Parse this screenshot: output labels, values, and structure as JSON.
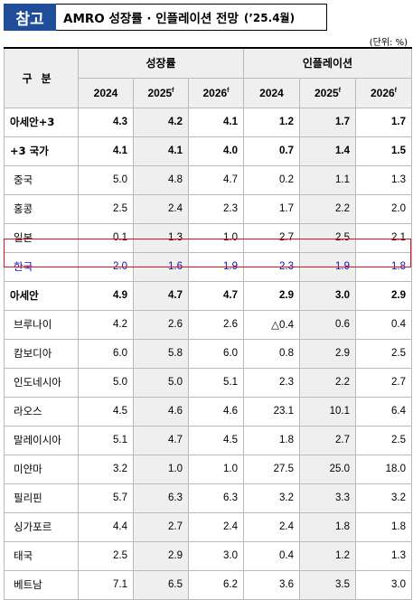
{
  "title": {
    "tag": "참고",
    "text": "AMRO 성장률 · 인플레이션 전망",
    "date": "(’25.4월)"
  },
  "unit": "(단위: %)",
  "header": {
    "corner": "구분",
    "group_growth": "성장률",
    "group_inflation": "인플레이션",
    "years": [
      {
        "year": "2024",
        "mark": ""
      },
      {
        "year": "2025",
        "mark": "f"
      },
      {
        "year": "2026",
        "mark": "f"
      },
      {
        "year": "2024",
        "mark": ""
      },
      {
        "year": "2025",
        "mark": "f"
      },
      {
        "year": "2026",
        "mark": "f"
      }
    ]
  },
  "rows": [
    {
      "name": "아세안+3",
      "values": [
        "4.3",
        "4.2",
        "4.1",
        "1.2",
        "1.7",
        "1.7"
      ]
    },
    {
      "name": "+3 국가",
      "values": [
        "4.1",
        "4.1",
        "4.0",
        "0.7",
        "1.4",
        "1.5"
      ]
    },
    {
      "name": "중국",
      "values": [
        "5.0",
        "4.8",
        "4.7",
        "0.2",
        "1.1",
        "1.3"
      ]
    },
    {
      "name": "홍콩",
      "values": [
        "2.5",
        "2.4",
        "2.3",
        "1.7",
        "2.2",
        "2.0"
      ]
    },
    {
      "name": "일본",
      "values": [
        "0.1",
        "1.3",
        "1.0",
        "2.7",
        "2.5",
        "2.1"
      ]
    },
    {
      "name": "한국",
      "values": [
        "2.0",
        "1.6",
        "1.9",
        "2.3",
        "1.9",
        "1.8"
      ]
    },
    {
      "name": "아세안",
      "values": [
        "4.9",
        "4.7",
        "4.7",
        "2.9",
        "3.0",
        "2.9"
      ]
    },
    {
      "name": "브루나이",
      "values": [
        "4.2",
        "2.6",
        "2.6",
        "△0.4",
        "0.6",
        "0.4"
      ]
    },
    {
      "name": "캄보디아",
      "values": [
        "6.0",
        "5.8",
        "6.0",
        "0.8",
        "2.9",
        "2.5"
      ]
    },
    {
      "name": "인도네시아",
      "values": [
        "5.0",
        "5.0",
        "5.1",
        "2.3",
        "2.2",
        "2.7"
      ]
    },
    {
      "name": "라오스",
      "values": [
        "4.5",
        "4.6",
        "4.6",
        "23.1",
        "10.1",
        "6.4"
      ]
    },
    {
      "name": "말레이시아",
      "values": [
        "5.1",
        "4.7",
        "4.5",
        "1.8",
        "2.7",
        "2.5"
      ]
    },
    {
      "name": "미얀마",
      "values": [
        "3.2",
        "1.0",
        "1.0",
        "27.5",
        "25.0",
        "18.0"
      ]
    },
    {
      "name": "필리핀",
      "values": [
        "5.7",
        "6.3",
        "6.3",
        "3.2",
        "3.3",
        "3.2"
      ]
    },
    {
      "name": "싱가포르",
      "values": [
        "4.4",
        "2.7",
        "2.4",
        "2.4",
        "1.8",
        "1.8"
      ]
    },
    {
      "name": "태국",
      "values": [
        "2.5",
        "2.9",
        "3.0",
        "0.4",
        "1.2",
        "1.3"
      ]
    },
    {
      "name": "베트남",
      "values": [
        "7.1",
        "6.5",
        "6.2",
        "3.6",
        "3.5",
        "3.0"
      ]
    }
  ]
}
